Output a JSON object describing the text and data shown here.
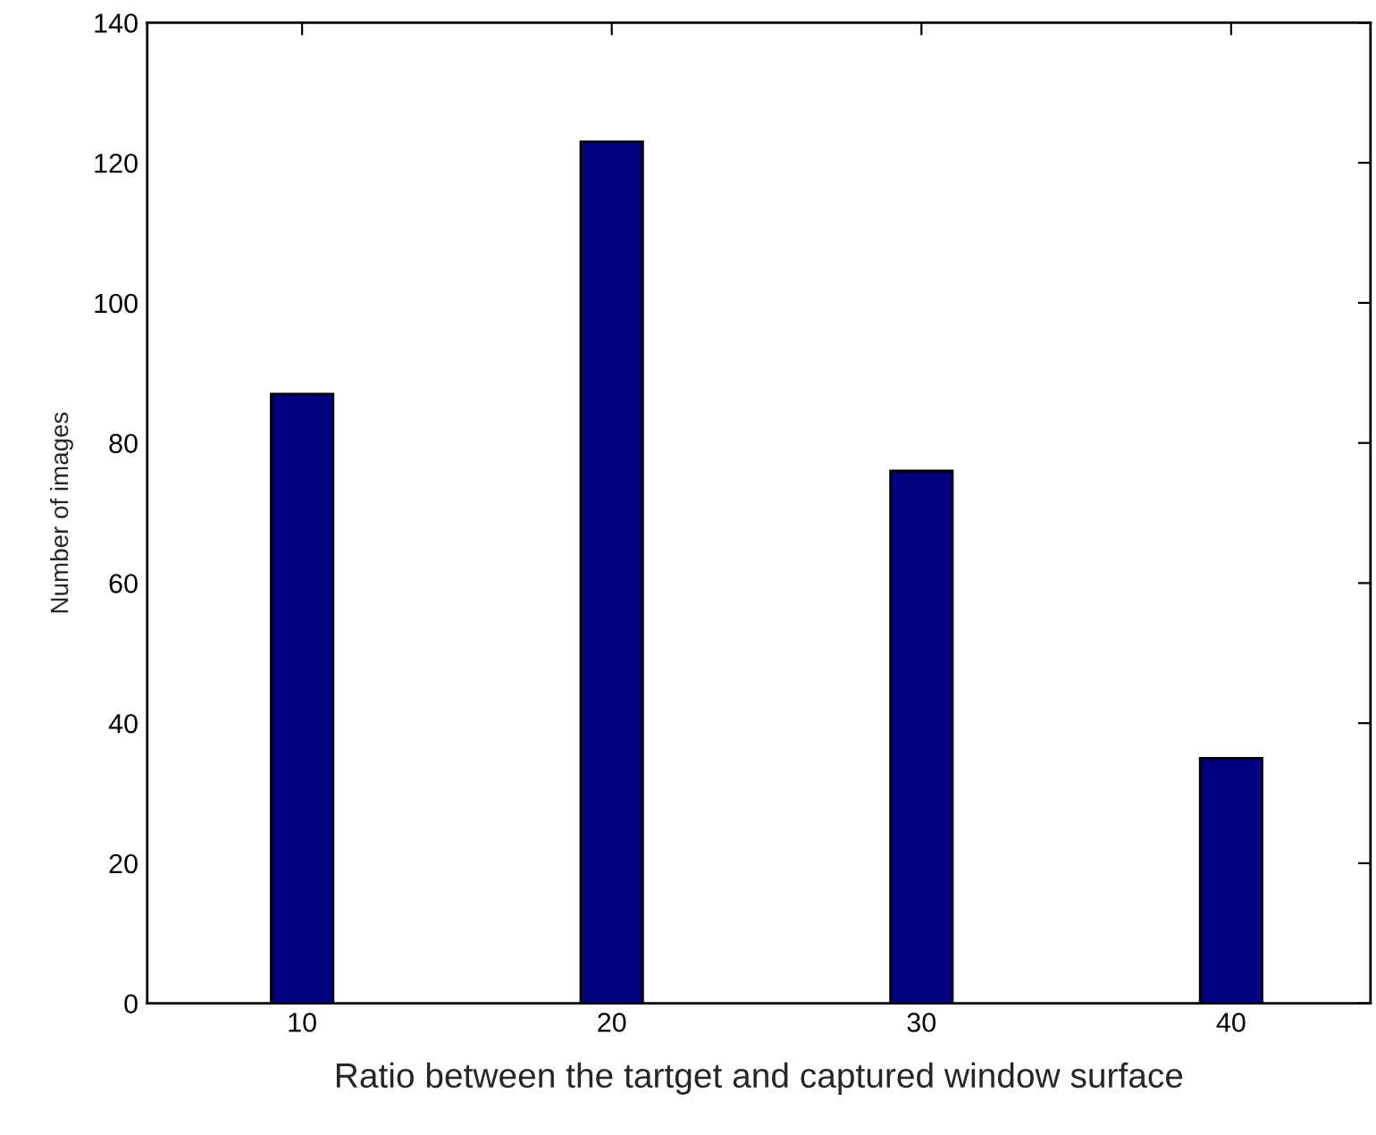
{
  "chart_data": {
    "type": "bar",
    "xlabel": "Ratio between the tartget and captured window surface",
    "ylabel": "Number of images",
    "x": [
      10,
      20,
      30,
      40
    ],
    "values": [
      87,
      123,
      76,
      35
    ],
    "color": "#000080",
    "xlim": [
      5,
      44.5
    ],
    "xticks": [
      10,
      20,
      30,
      40
    ],
    "ylim": [
      0,
      140
    ],
    "yticks": [
      0,
      20,
      40,
      60,
      80,
      100,
      120,
      140
    ],
    "grid": false
  }
}
